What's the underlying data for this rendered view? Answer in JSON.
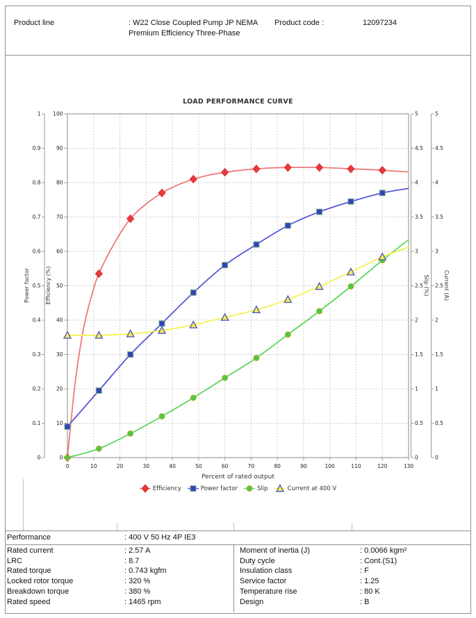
{
  "header": {
    "product_line_label": "Product line",
    "product_line_value": ": W22 Close Coupled Pump JP NEMA Premium Efficiency Three-Phase",
    "product_code_label": "Product code :",
    "product_code_value": "12097234"
  },
  "chart_data": {
    "type": "line",
    "title": "LOAD PERFORMANCE CURVE",
    "xlabel": "Percent of rated output",
    "xlim": [
      0,
      130
    ],
    "x_tick_step": 10,
    "grid": true,
    "legend_position": "bottom",
    "axes": [
      {
        "id": "power_factor",
        "label": "Power factor",
        "min": 0,
        "max": 1,
        "step": 0.1,
        "side": "left-outer"
      },
      {
        "id": "efficiency",
        "label": "Efficiency (%)",
        "min": 0,
        "max": 100,
        "step": 10,
        "side": "left-inner"
      },
      {
        "id": "slip",
        "label": "Slip (%)",
        "min": 0,
        "max": 5,
        "step": 0.5,
        "side": "right-inner"
      },
      {
        "id": "current",
        "label": "Current (A)",
        "min": 0,
        "max": 5,
        "step": 0.5,
        "side": "right-outer"
      }
    ],
    "series": [
      {
        "name": "Efficiency",
        "axis": "efficiency",
        "marker": "diamond",
        "line_color": "#f07878",
        "marker_color": "#e63a3c",
        "marker_stroke": "#d93234",
        "x": [
          0,
          12,
          24,
          36,
          48,
          60,
          72,
          84,
          96,
          108,
          120
        ],
        "y": [
          0,
          53.5,
          69.5,
          77,
          81,
          83,
          84,
          84.4,
          84.4,
          84,
          83.6
        ],
        "line_x": [
          0,
          3,
          6,
          9,
          12,
          18,
          24,
          30,
          36,
          42,
          48,
          54,
          60,
          66,
          72,
          78,
          84,
          90,
          96,
          102,
          108,
          114,
          120,
          125,
          130
        ],
        "line_y": [
          0,
          22,
          37,
          46.5,
          53.5,
          62.5,
          69.5,
          73.8,
          77,
          79.3,
          81,
          82.2,
          83,
          83.6,
          84,
          84.3,
          84.4,
          84.45,
          84.4,
          84.25,
          84,
          83.85,
          83.6,
          83.35,
          83.1
        ]
      },
      {
        "name": "Power factor",
        "axis": "power_factor",
        "marker": "square",
        "line_color": "#5656d6",
        "marker_color": "#2f44bd",
        "marker_stroke": "#7fae7f",
        "x": [
          0,
          12,
          24,
          36,
          48,
          60,
          72,
          84,
          96,
          108,
          120
        ],
        "y": [
          0.09,
          0.195,
          0.3,
          0.39,
          0.48,
          0.56,
          0.62,
          0.675,
          0.715,
          0.745,
          0.77
        ],
        "line_x": [
          0,
          12,
          24,
          36,
          48,
          60,
          72,
          84,
          96,
          108,
          120,
          130
        ],
        "line_y": [
          0.09,
          0.195,
          0.3,
          0.39,
          0.48,
          0.56,
          0.62,
          0.675,
          0.715,
          0.745,
          0.77,
          0.783
        ]
      },
      {
        "name": "Slip",
        "axis": "slip",
        "marker": "circle",
        "line_color": "#5cd65c",
        "marker_color": "#46cc46",
        "marker_stroke": "#c9a62a",
        "x": [
          0,
          12,
          24,
          36,
          48,
          60,
          72,
          84,
          96,
          108,
          120
        ],
        "y": [
          0,
          0.13,
          0.35,
          0.6,
          0.87,
          1.16,
          1.45,
          1.79,
          2.13,
          2.49,
          2.87
        ],
        "line_x": [
          0,
          12,
          24,
          36,
          48,
          60,
          72,
          84,
          96,
          108,
          120,
          130
        ],
        "line_y": [
          0,
          0.13,
          0.35,
          0.6,
          0.87,
          1.16,
          1.45,
          1.79,
          2.13,
          2.49,
          2.87,
          3.17
        ]
      },
      {
        "name": "Current at 400 V",
        "axis": "current",
        "marker": "triangle",
        "line_color": "#f4f34f",
        "marker_color": "#f1ef55",
        "marker_stroke": "#4d4dc2",
        "x": [
          0,
          12,
          24,
          36,
          48,
          60,
          72,
          84,
          96,
          108,
          120
        ],
        "y": [
          1.78,
          1.78,
          1.8,
          1.85,
          1.93,
          2.04,
          2.15,
          2.3,
          2.49,
          2.7,
          2.92
        ],
        "line_x": [
          0,
          12,
          24,
          36,
          48,
          60,
          72,
          84,
          96,
          108,
          120,
          130
        ],
        "line_y": [
          1.78,
          1.78,
          1.8,
          1.85,
          1.93,
          2.04,
          2.15,
          2.3,
          2.49,
          2.7,
          2.92,
          3.06
        ]
      }
    ]
  },
  "performance": {
    "label": "Performance",
    "value": ": 400 V 50 Hz 4P IE3"
  },
  "specs": {
    "left": [
      {
        "label": "Rated current",
        "value": ": 2.57 A"
      },
      {
        "label": "LRC",
        "value": ": 8.7"
      },
      {
        "label": "Rated torque",
        "value": ": 0.743 kgfm"
      },
      {
        "label": "Locked rotor torque",
        "value": ": 320 %"
      },
      {
        "label": "Breakdown torque",
        "value": ": 380 %"
      },
      {
        "label": "Rated speed",
        "value": ": 1465 rpm"
      }
    ],
    "right": [
      {
        "label": "Moment of inertia (J)",
        "value": ": 0.0066 kgm²"
      },
      {
        "label": "Duty cycle",
        "value": ": Cont.(S1)"
      },
      {
        "label": "Insulation class",
        "value": ": F"
      },
      {
        "label": "Service factor",
        "value": ": 1.25"
      },
      {
        "label": "Temperature rise",
        "value": ": 80 K"
      },
      {
        "label": "Design",
        "value": ": B"
      }
    ]
  }
}
